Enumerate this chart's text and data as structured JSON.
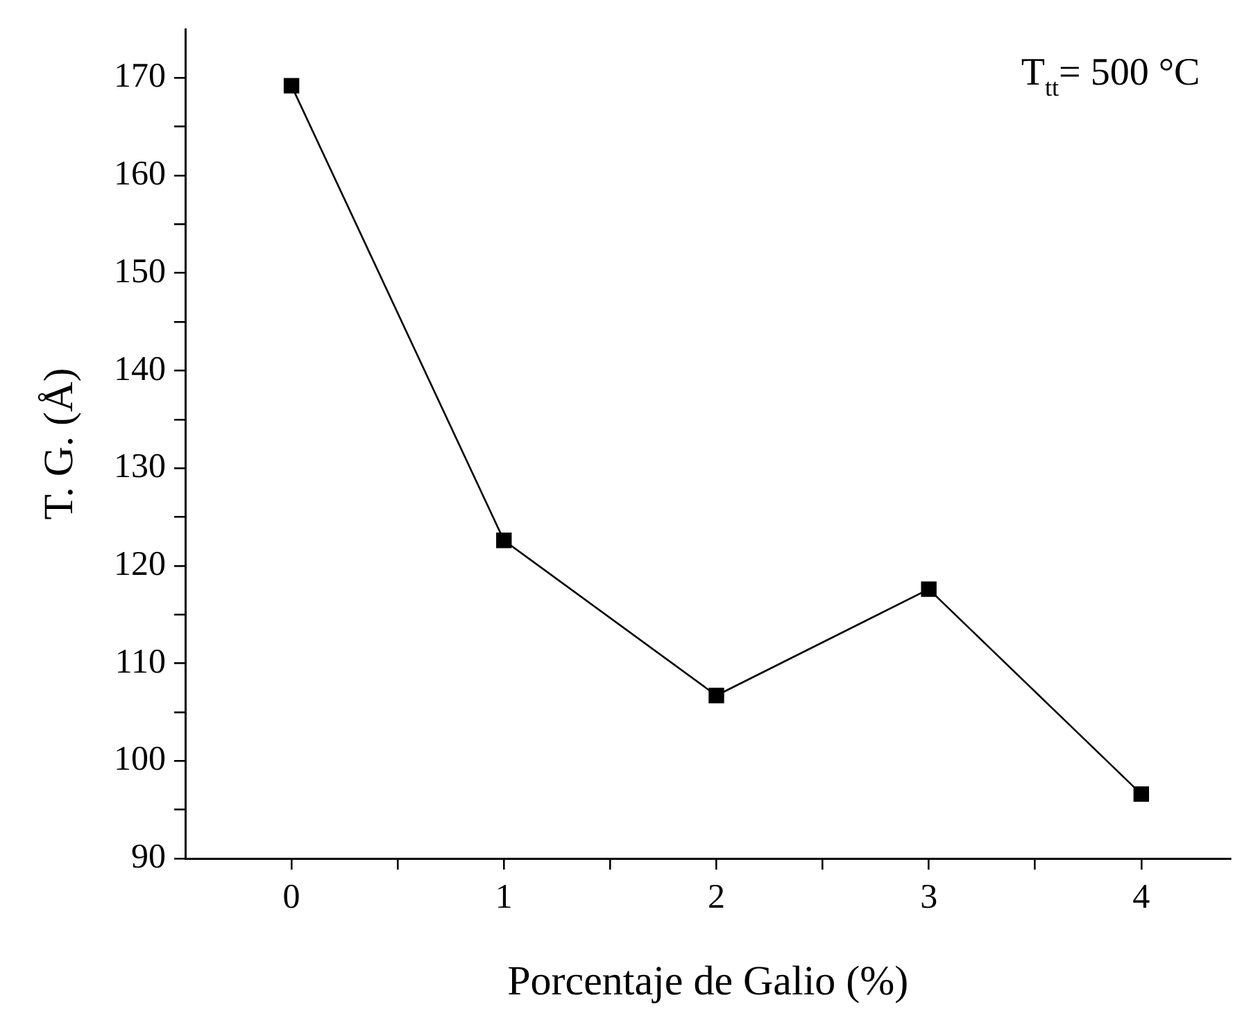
{
  "chart_data": {
    "type": "line",
    "xlabel": "Porcentaje de Galio (%)",
    "ylabel": "T. G. (Å)",
    "x": [
      0,
      1,
      2,
      3,
      4
    ],
    "series": [
      {
        "color": "#000000",
        "values": [
          169.2,
          122.6,
          106.7,
          117.6,
          96.6
        ]
      }
    ],
    "xlim": [
      -0.5,
      4.42
    ],
    "xticks": [
      0,
      1,
      2,
      3,
      4,
      {
        "value": 0.5,
        "label": null
      },
      {
        "value": 1.5,
        "label": null
      },
      {
        "value": 2.5,
        "label": null
      },
      {
        "value": 3.5,
        "label": null
      }
    ],
    "ylim": [
      90,
      175
    ],
    "yticks": [
      90,
      100,
      110,
      120,
      130,
      140,
      150,
      160,
      170,
      {
        "value": 95,
        "label": null
      },
      {
        "value": 105,
        "label": null
      },
      {
        "value": 115,
        "label": null
      },
      {
        "value": 125,
        "label": null
      },
      {
        "value": 135,
        "label": null
      },
      {
        "value": 145,
        "label": null
      },
      {
        "value": 155,
        "label": null
      },
      {
        "value": 165,
        "label": null
      }
    ],
    "marker": "square",
    "line_style": "solid",
    "grid": false,
    "legend": false,
    "annotations": [
      "T$_{tt}$= 500 °C"
    ]
  }
}
